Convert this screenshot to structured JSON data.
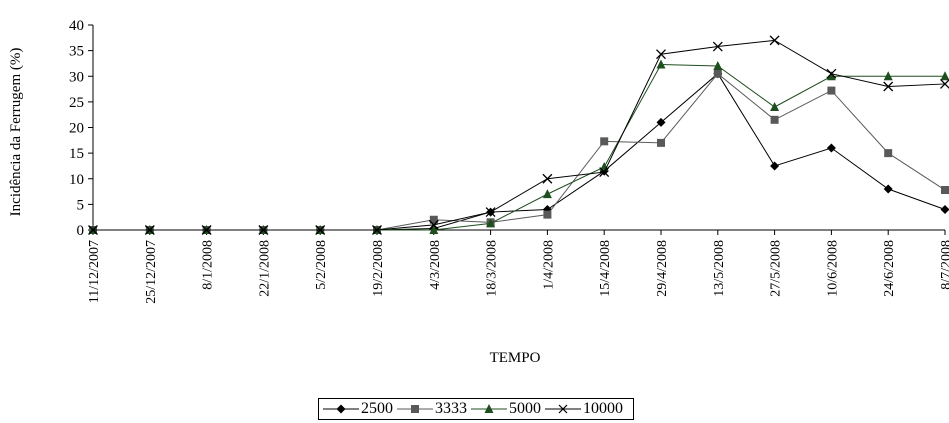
{
  "chart_data": {
    "type": "line",
    "title": "",
    "xlabel": "TEMPO",
    "ylabel": "Incidência da Ferrugem (%)",
    "ylim": [
      0,
      40
    ],
    "yticks": [
      0,
      5,
      10,
      15,
      20,
      25,
      30,
      35,
      40
    ],
    "grid": false,
    "legend_position": "bottom",
    "categories": [
      "11/12/2007",
      "25/12/2007",
      "8/1/2008",
      "22/1/2008",
      "5/2/2008",
      "19/2/2008",
      "4/3/2008",
      "18/3/2008",
      "1/4/2008",
      "15/4/2008",
      "29/4/2008",
      "13/5/2008",
      "27/5/2008",
      "10/6/2008",
      "24/6/2008",
      "8/7/2008"
    ],
    "series": [
      {
        "name": "2500",
        "marker": "diamond",
        "color": "#000000",
        "values": [
          0,
          0,
          0,
          0,
          0,
          0,
          0.3,
          3.5,
          4,
          11.5,
          21,
          30.5,
          12.5,
          16,
          8,
          4
        ]
      },
      {
        "name": "3333",
        "marker": "square",
        "color": "#595959",
        "values": [
          0,
          0,
          0,
          0,
          0,
          0,
          2,
          1.5,
          3,
          17.3,
          17,
          30.5,
          21.5,
          27.2,
          15,
          7.8
        ]
      },
      {
        "name": "5000",
        "marker": "triangle",
        "color": "#1f4e1f",
        "values": [
          0,
          0,
          0,
          0,
          0,
          0,
          0,
          1.3,
          7,
          12.3,
          32.3,
          32,
          24,
          30,
          30,
          30
        ]
      },
      {
        "name": "10000",
        "marker": "x",
        "color": "#000000",
        "values": [
          0,
          0,
          0,
          0,
          0,
          0,
          1,
          3.5,
          10,
          11.3,
          34.3,
          35.8,
          37,
          30.5,
          28,
          28.5
        ]
      }
    ]
  }
}
